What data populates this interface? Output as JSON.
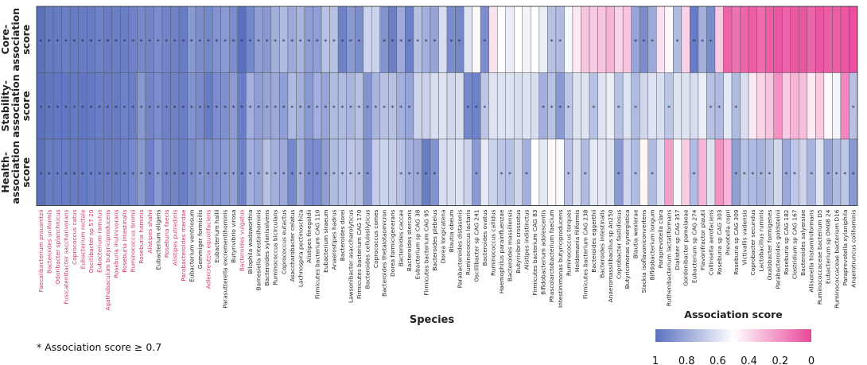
{
  "chart_data": {
    "type": "heatmap",
    "rows": [
      "Core-association score",
      "Stability-association score",
      "Health-association score"
    ],
    "row_label_lines": [
      [
        "Core-",
        "association",
        "score"
      ],
      [
        "Stability-",
        "association",
        "score"
      ],
      [
        "Health-",
        "association",
        "score"
      ]
    ],
    "xlabel": "Species",
    "footnote": "* Association score  ≥ 0.7",
    "legend": {
      "title": "Association score",
      "ticks": [
        "1",
        "0.8",
        "0.6",
        "0.4",
        "0.2",
        "0"
      ],
      "colormap": [
        "#5b71c0",
        "#ffffff",
        "#e9479a"
      ]
    },
    "colors": {
      "highlight_label": "#cc3366",
      "default_label": "#222222"
    },
    "columns": [
      {
        "name": "Faecalibacterium prausnitzii",
        "hl": true,
        "v": [
          1.0,
          1.0,
          1.0
        ]
      },
      {
        "name": "Bacteroides uniformis",
        "hl": true,
        "v": [
          0.97,
          0.98,
          0.96
        ]
      },
      {
        "name": "Odoribacter splanchnicus",
        "hl": true,
        "v": [
          0.96,
          0.98,
          0.96
        ]
      },
      {
        "name": "Fusicatenibacter saccharivorans",
        "hl": true,
        "v": [
          0.95,
          0.98,
          0.96
        ]
      },
      {
        "name": "Coprococcus catus",
        "hl": true,
        "v": [
          0.96,
          0.97,
          0.96
        ]
      },
      {
        "name": "Eubacterium rectale",
        "hl": true,
        "v": [
          0.96,
          0.98,
          0.97
        ]
      },
      {
        "name": "Oscillibacter sp 57 20",
        "hl": true,
        "v": [
          0.96,
          0.97,
          0.95
        ]
      },
      {
        "name": "Eubacterium ramulus",
        "hl": true,
        "v": [
          0.94,
          0.95,
          0.95
        ]
      },
      {
        "name": "Agathobaculum butyriciproducens",
        "hl": true,
        "v": [
          0.96,
          0.96,
          0.95
        ]
      },
      {
        "name": "Roseburia inulinivorans",
        "hl": true,
        "v": [
          0.95,
          0.96,
          0.95
        ]
      },
      {
        "name": "Roseburia intestinalis",
        "hl": true,
        "v": [
          0.95,
          0.94,
          0.94
        ]
      },
      {
        "name": "Ruminococcus bromii",
        "hl": true,
        "v": [
          0.94,
          0.95,
          0.92
        ]
      },
      {
        "name": "Roseburia hominis",
        "hl": true,
        "v": [
          0.92,
          0.86,
          0.86
        ]
      },
      {
        "name": "Alistipes shahii",
        "hl": true,
        "v": [
          0.93,
          0.93,
          0.94
        ]
      },
      {
        "name": "Eubacterium eligens",
        "hl": false,
        "v": [
          0.9,
          0.9,
          0.86
        ]
      },
      {
        "name": "Roseburia faecis",
        "hl": true,
        "v": [
          0.93,
          0.94,
          0.93
        ]
      },
      {
        "name": "Alistipes putredinis",
        "hl": true,
        "v": [
          0.94,
          0.94,
          0.93
        ]
      },
      {
        "name": "Parabacteroides merdae",
        "hl": true,
        "v": [
          0.96,
          0.95,
          0.95
        ]
      },
      {
        "name": "Eubacterium ventriosum",
        "hl": false,
        "v": [
          0.86,
          0.88,
          0.9
        ]
      },
      {
        "name": "Gemmiger formicilis",
        "hl": false,
        "v": [
          0.9,
          0.91,
          0.87
        ]
      },
      {
        "name": "Adlercreutzia equolifaciens",
        "hl": true,
        "v": [
          0.92,
          0.96,
          0.89
        ]
      },
      {
        "name": "Eubacterium hallii",
        "hl": false,
        "v": [
          0.88,
          0.9,
          0.88
        ]
      },
      {
        "name": "Parasutterella excrementihominis",
        "hl": false,
        "v": [
          0.86,
          0.89,
          0.86
        ]
      },
      {
        "name": "Butyrivibrio virosa",
        "hl": false,
        "v": [
          0.9,
          0.85,
          0.83
        ]
      },
      {
        "name": "Bacteroides vulgatus",
        "hl": true,
        "v": [
          1.0,
          0.96,
          0.94
        ]
      },
      {
        "name": "Bilophila wadsworthia",
        "hl": false,
        "v": [
          0.92,
          0.78,
          0.78
        ]
      },
      {
        "name": "Barnesiella intestinihominis",
        "hl": false,
        "v": [
          0.84,
          0.84,
          0.82
        ]
      },
      {
        "name": "Bacteroides xylanisolvens",
        "hl": false,
        "v": [
          0.86,
          0.82,
          0.72
        ]
      },
      {
        "name": "Ruminococcus bicirculans",
        "hl": false,
        "v": [
          0.78,
          0.8,
          0.78
        ]
      },
      {
        "name": "Coprococcus eutactus",
        "hl": false,
        "v": [
          0.74,
          0.84,
          0.8
        ]
      },
      {
        "name": "Asaccharobacter celatus",
        "hl": false,
        "v": [
          0.8,
          0.74,
          0.92
        ]
      },
      {
        "name": "Lachnospira pectinoschiza",
        "hl": false,
        "v": [
          0.76,
          0.78,
          0.78
        ]
      },
      {
        "name": "Alistipes finegoldii",
        "hl": false,
        "v": [
          0.84,
          0.86,
          0.9
        ]
      },
      {
        "name": "Firmicutes bacterium CAG 110",
        "hl": false,
        "v": [
          0.84,
          0.78,
          0.9
        ]
      },
      {
        "name": "Eubacterium siraeum",
        "hl": false,
        "v": [
          0.72,
          0.82,
          0.84
        ]
      },
      {
        "name": "Anaerostipes hadrus",
        "hl": false,
        "v": [
          0.72,
          0.74,
          0.74
        ]
      },
      {
        "name": "Bacteroides dorei",
        "hl": false,
        "v": [
          0.94,
          0.74,
          0.72
        ]
      },
      {
        "name": "Lawsonibacter asaccharolyticus",
        "hl": false,
        "v": [
          0.86,
          0.76,
          0.7
        ]
      },
      {
        "name": "Firmicutes bacterium CAG 170",
        "hl": false,
        "v": [
          0.9,
          0.72,
          0.72
        ]
      },
      {
        "name": "Bacteroides cellulosilyticus",
        "hl": false,
        "v": [
          0.66,
          0.88,
          0.88
        ]
      },
      {
        "name": "Coprococcus comes",
        "hl": false,
        "v": [
          0.66,
          0.76,
          0.68
        ]
      },
      {
        "name": "Bacteroides thetaiotaomicron",
        "hl": false,
        "v": [
          0.88,
          0.72,
          0.66
        ]
      },
      {
        "name": "Dorea formicigenerans",
        "hl": false,
        "v": [
          0.95,
          0.72,
          0.68
        ]
      },
      {
        "name": "Bacteroides caccae",
        "hl": false,
        "v": [
          0.8,
          0.78,
          0.72
        ]
      },
      {
        "name": "Bacteroides stercoris",
        "hl": false,
        "v": [
          0.95,
          0.82,
          0.78
        ]
      },
      {
        "name": "Eubacterium sp CAG 38",
        "hl": false,
        "v": [
          0.72,
          0.65,
          0.8
        ]
      },
      {
        "name": "Firmicutes bacterium CAG 95",
        "hl": false,
        "v": [
          0.78,
          0.66,
          0.95
        ]
      },
      {
        "name": "Bacteroides plebeius",
        "hl": false,
        "v": [
          0.82,
          0.62,
          0.88
        ]
      },
      {
        "name": "Dorea longicatena",
        "hl": false,
        "v": [
          0.62,
          0.6,
          0.62
        ]
      },
      {
        "name": "Blautia obeum",
        "hl": false,
        "v": [
          0.9,
          0.64,
          0.62
        ]
      },
      {
        "name": "Parabacteroides distasonis",
        "hl": false,
        "v": [
          0.92,
          0.62,
          0.6
        ]
      },
      {
        "name": "Ruminococcus lactaris",
        "hl": false,
        "v": [
          0.6,
          0.92,
          0.66
        ]
      },
      {
        "name": "Oscillibacter sp CAG 241",
        "hl": false,
        "v": [
          0.48,
          0.94,
          0.86
        ]
      },
      {
        "name": "Bacteroides ovatus",
        "hl": false,
        "v": [
          0.9,
          0.7,
          0.58
        ]
      },
      {
        "name": "Ruminococcus callidus",
        "hl": false,
        "v": [
          0.42,
          0.6,
          0.66
        ]
      },
      {
        "name": "Haemophilus parainfluenzae",
        "hl": false,
        "v": [
          0.5,
          0.6,
          0.7
        ]
      },
      {
        "name": "Bacteroides massiliensis",
        "hl": false,
        "v": [
          0.56,
          0.6,
          0.72
        ]
      },
      {
        "name": "Butyrivibrio crossotus",
        "hl": false,
        "v": [
          0.5,
          0.62,
          0.64
        ]
      },
      {
        "name": "Alistipes indistinctus",
        "hl": false,
        "v": [
          0.54,
          0.6,
          0.78
        ]
      },
      {
        "name": "Firmicutes bacterium CAG 83",
        "hl": false,
        "v": [
          0.5,
          0.62,
          0.5
        ]
      },
      {
        "name": "Bifidobacterium adolescentis",
        "hl": false,
        "v": [
          0.56,
          0.78,
          0.58
        ]
      },
      {
        "name": "Phascolarctobacterium faecium",
        "hl": false,
        "v": [
          0.72,
          0.72,
          0.48
        ]
      },
      {
        "name": "Intestinimonas butyriciproducens",
        "hl": false,
        "v": [
          0.74,
          0.86,
          0.52
        ]
      },
      {
        "name": "Ruminococcus torques",
        "hl": false,
        "v": [
          0.52,
          0.7,
          0.72
        ]
      },
      {
        "name": "Holdemania filiformis",
        "hl": false,
        "v": [
          0.44,
          0.6,
          0.6
        ]
      },
      {
        "name": "Firmicutes bacterium CAG 238",
        "hl": false,
        "v": [
          0.34,
          0.6,
          0.74
        ]
      },
      {
        "name": "Bacteroides eggerthii",
        "hl": false,
        "v": [
          0.36,
          0.72,
          0.58
        ]
      },
      {
        "name": "Bacteroides intestinalis",
        "hl": false,
        "v": [
          0.34,
          0.6,
          0.58
        ]
      },
      {
        "name": "Anaeromassilibacillus sp An250",
        "hl": false,
        "v": [
          0.3,
          0.56,
          0.6
        ]
      },
      {
        "name": "Coprobacter fastidiosus",
        "hl": false,
        "v": [
          0.38,
          0.72,
          0.86
        ]
      },
      {
        "name": "Butyricimonas synergistica",
        "hl": false,
        "v": [
          0.34,
          0.6,
          0.64
        ]
      },
      {
        "name": "Blautia wexlerae",
        "hl": false,
        "v": [
          0.82,
          0.74,
          0.74
        ]
      },
      {
        "name": "Slackia isoflavoniconvertens",
        "hl": false,
        "v": [
          0.9,
          0.64,
          0.48
        ]
      },
      {
        "name": "Bifidobacterium longum",
        "hl": false,
        "v": [
          0.8,
          0.6,
          0.74
        ]
      },
      {
        "name": "Paraprevotella clara",
        "hl": false,
        "v": [
          0.42,
          0.62,
          0.6
        ]
      },
      {
        "name": "Ruthenibacterium lactatiformans",
        "hl": false,
        "v": [
          0.48,
          0.7,
          0.24
        ]
      },
      {
        "name": "Dialister sp CAG 357",
        "hl": false,
        "v": [
          0.74,
          0.6,
          0.52
        ]
      },
      {
        "name": "Gordonibacter pamelaeae",
        "hl": false,
        "v": [
          0.38,
          0.6,
          0.36
        ]
      },
      {
        "name": "Eubacterium sp CAG 274",
        "hl": false,
        "v": [
          0.96,
          0.62,
          0.74
        ]
      },
      {
        "name": "Flavonifractor plautii",
        "hl": false,
        "v": [
          0.78,
          0.56,
          0.3
        ]
      },
      {
        "name": "Collinsella aerofaciens",
        "hl": false,
        "v": [
          0.9,
          0.72,
          0.6
        ]
      },
      {
        "name": "Roseburia sp CAG 303",
        "hl": false,
        "v": [
          0.36,
          0.74,
          0.2
        ]
      },
      {
        "name": "Prevotella copri",
        "hl": false,
        "v": [
          0.08,
          0.58,
          0.3
        ]
      },
      {
        "name": "Roseburia sp CAG 309",
        "hl": false,
        "v": [
          0.12,
          0.74,
          0.84
        ]
      },
      {
        "name": "Victivallis vadensis",
        "hl": false,
        "v": [
          0.08,
          0.62,
          0.72
        ]
      },
      {
        "name": "Coprobacter secundus",
        "hl": false,
        "v": [
          0.06,
          0.44,
          0.74
        ]
      },
      {
        "name": "Lactobacillus ruminis",
        "hl": false,
        "v": [
          0.1,
          0.38,
          0.76
        ]
      },
      {
        "name": "Oxalobacter formigenes",
        "hl": false,
        "v": [
          0.06,
          0.34,
          0.72
        ]
      },
      {
        "name": "Parabacteroides goldsteinii",
        "hl": false,
        "v": [
          0.04,
          0.2,
          0.64
        ]
      },
      {
        "name": "Roseburia sp CAG 182",
        "hl": false,
        "v": [
          0.08,
          0.36,
          0.8
        ]
      },
      {
        "name": "Clostridium sp CAG 167",
        "hl": false,
        "v": [
          0.05,
          0.3,
          0.7
        ]
      },
      {
        "name": "Bacteroides salyersiae",
        "hl": false,
        "v": [
          0.04,
          0.32,
          0.66
        ]
      },
      {
        "name": "Allisonella histaminiformans",
        "hl": false,
        "v": [
          0.08,
          0.44,
          0.76
        ]
      },
      {
        "name": "Ruminococcaceae bacterium D5",
        "hl": false,
        "v": [
          0.04,
          0.36,
          0.6
        ]
      },
      {
        "name": "Eubacterium sp OM08 24",
        "hl": false,
        "v": [
          0.06,
          0.48,
          0.82
        ]
      },
      {
        "name": "Ruminococcaceae bacterium D16",
        "hl": false,
        "v": [
          0.06,
          0.54,
          0.74
        ]
      },
      {
        "name": "Paraprevotella xylaniphila",
        "hl": false,
        "v": [
          0.04,
          0.18,
          0.7
        ]
      },
      {
        "name": "Anaerotruncus colihominis",
        "hl": false,
        "v": [
          0.02,
          0.72,
          0.86
        ]
      }
    ]
  }
}
